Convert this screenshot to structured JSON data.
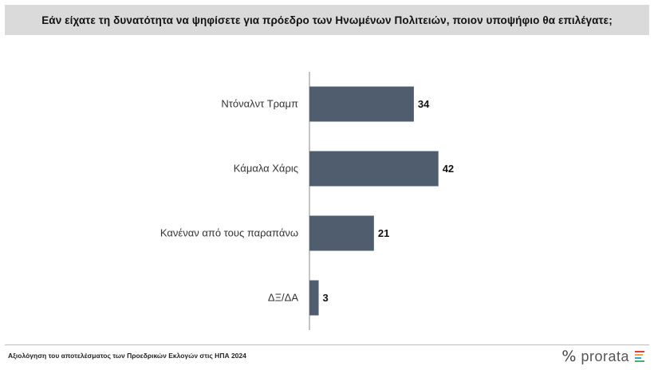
{
  "header": {
    "title": "Εάν είχατε τη δυνατότητα να ψηφίσετε για πρόεδρο  των Ηνωμένων Πολιτειών, ποιον υποψήφιο θα επιλέγατε;"
  },
  "chart_data": {
    "type": "bar",
    "orientation": "horizontal",
    "categories": [
      "Ντόναλντ Τραμπ",
      "Κάμαλα Χάρις",
      "Κανέναν από τους παραπάνω",
      "ΔΞ/ΔΑ"
    ],
    "values": [
      34,
      42,
      21,
      3
    ],
    "title": "",
    "xlabel": "",
    "ylabel": "",
    "xlim": [
      0,
      100
    ],
    "grid": false,
    "colors": {
      "bar": "#4f5d6f"
    }
  },
  "footer": {
    "note": "Αξιολόγηση του αποτελέσματος των Προεδρικών Εκλογών στις ΗΠΑ 2024",
    "brand_symbol": "%",
    "brand_name": "prorata",
    "brand_icon": "prorata-stripes-icon",
    "brand_colors": [
      "#e23b3b",
      "#f0a43a",
      "#3ba0d8",
      "#3bb36b"
    ]
  }
}
